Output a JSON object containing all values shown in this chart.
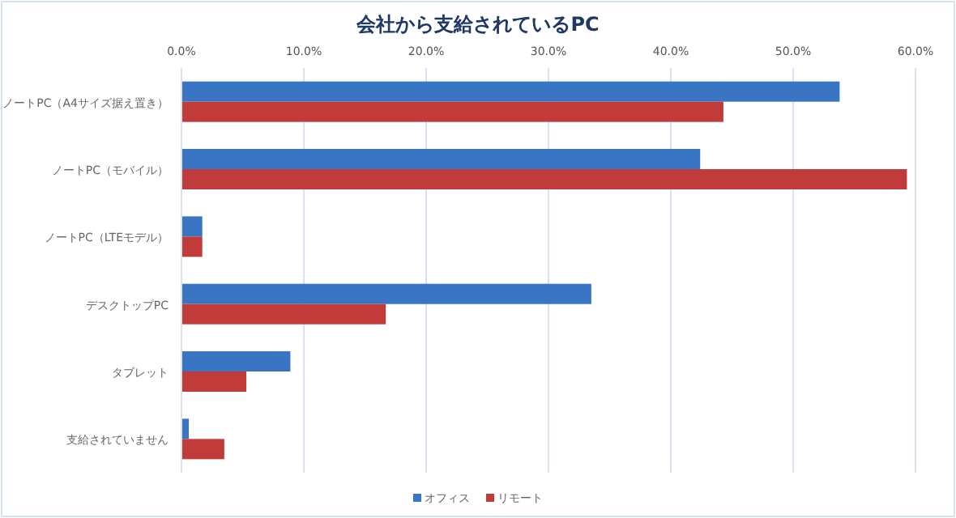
{
  "chart_data": {
    "type": "bar",
    "orientation": "horizontal",
    "title": "会社から支給されているPC",
    "categories": [
      "ノートPC（A4サイズ据え置き）",
      "ノートPC（モバイル）",
      "ノートPC（LTEモデル）",
      "デスクトップPC",
      "タブレット",
      "支給されていません"
    ],
    "series": [
      {
        "name": "オフィス",
        "color": "#3a75c4",
        "values": [
          53.8,
          42.4,
          1.7,
          33.5,
          8.9,
          0.6
        ]
      },
      {
        "name": "リモート",
        "color": "#c23b3b",
        "values": [
          44.3,
          59.3,
          1.7,
          16.7,
          5.3,
          3.5
        ]
      }
    ],
    "xlim": [
      0,
      60
    ],
    "xticks": [
      {
        "value": 0,
        "label": "0.0%"
      },
      {
        "value": 10,
        "label": "10.0%"
      },
      {
        "value": 20,
        "label": "20.0%"
      },
      {
        "value": 30,
        "label": "30.0%"
      },
      {
        "value": 40,
        "label": "40.0%"
      },
      {
        "value": 50,
        "label": "50.0%"
      },
      {
        "value": 60,
        "label": "60.0%"
      }
    ],
    "grid": "x",
    "legend": "bottom"
  }
}
